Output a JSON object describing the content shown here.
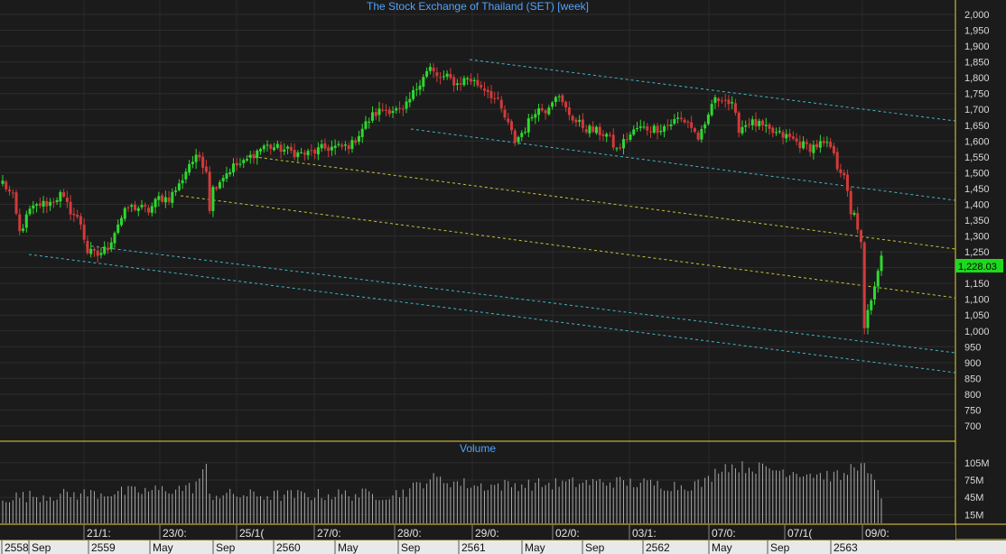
{
  "chart_data": {
    "type": "candlestick",
    "title": "The Stock Exchange of Thailand (SET) [week]",
    "volume_title": "Volume",
    "price_axis": {
      "ticks": [
        "2,000",
        "1,950",
        "1,900",
        "1,850",
        "1,800",
        "1,750",
        "1,700",
        "1,650",
        "1,600",
        "1,550",
        "1,500",
        "1,450",
        "1,400",
        "1,350",
        "1,300",
        "1,250",
        "1,200",
        "1,150",
        "1,100",
        "1,050",
        "1,000",
        "950",
        "900",
        "850",
        "800",
        "750",
        "700"
      ],
      "range": [
        670,
        2020
      ],
      "grid": true
    },
    "volume_axis": {
      "ticks": [
        "105M",
        "75M",
        "45M",
        "15M"
      ],
      "range": [
        0,
        125
      ]
    },
    "last_price": "1,228.03",
    "top_date_labels": [
      "21/1:",
      "23/0:",
      "25/1(",
      "27/0:",
      "28/0:",
      "29/0:",
      "02/0:",
      "03/1:",
      "07/0:",
      "07/1(",
      "09/0:"
    ],
    "bottom_period_labels": [
      "2558",
      "Sep",
      "2559",
      "May",
      "Sep",
      "2560",
      "May",
      "Sep",
      "2561",
      "May",
      "Sep",
      "2562",
      "May",
      "Sep",
      "2563"
    ],
    "price_anchors": [
      [
        0,
        1470
      ],
      [
        3,
        1420
      ],
      [
        5,
        1310
      ],
      [
        8,
        1380
      ],
      [
        11,
        1400
      ],
      [
        14,
        1405
      ],
      [
        17,
        1430
      ],
      [
        20,
        1380
      ],
      [
        23,
        1340
      ],
      [
        25,
        1250
      ],
      [
        28,
        1240
      ],
      [
        31,
        1265
      ],
      [
        34,
        1340
      ],
      [
        37,
        1390
      ],
      [
        40,
        1390
      ],
      [
        43,
        1380
      ],
      [
        46,
        1420
      ],
      [
        49,
        1420
      ],
      [
        52,
        1460
      ],
      [
        55,
        1530
      ],
      [
        58,
        1550
      ],
      [
        60,
        1510
      ],
      [
        61,
        1390
      ],
      [
        62,
        1450
      ],
      [
        65,
        1490
      ],
      [
        68,
        1520
      ],
      [
        71,
        1530
      ],
      [
        74,
        1560
      ],
      [
        77,
        1585
      ],
      [
        80,
        1580
      ],
      [
        84,
        1570
      ],
      [
        87,
        1560
      ],
      [
        90,
        1560
      ],
      [
        94,
        1575
      ],
      [
        97,
        1580
      ],
      [
        100,
        1580
      ],
      [
        103,
        1590
      ],
      [
        106,
        1640
      ],
      [
        109,
        1680
      ],
      [
        112,
        1700
      ],
      [
        115,
        1700
      ],
      [
        118,
        1690
      ],
      [
        121,
        1750
      ],
      [
        124,
        1810
      ],
      [
        126,
        1830
      ],
      [
        128,
        1800
      ],
      [
        131,
        1800
      ],
      [
        134,
        1780
      ],
      [
        137,
        1800
      ],
      [
        140,
        1780
      ],
      [
        143,
        1760
      ],
      [
        146,
        1720
      ],
      [
        149,
        1650
      ],
      [
        151,
        1600
      ],
      [
        154,
        1640
      ],
      [
        157,
        1700
      ],
      [
        160,
        1700
      ],
      [
        163,
        1750
      ],
      [
        166,
        1700
      ],
      [
        169,
        1660
      ],
      [
        172,
        1640
      ],
      [
        175,
        1630
      ],
      [
        178,
        1620
      ],
      [
        181,
        1570
      ],
      [
        184,
        1610
      ],
      [
        187,
        1640
      ],
      [
        190,
        1640
      ],
      [
        193,
        1640
      ],
      [
        196,
        1650
      ],
      [
        199,
        1670
      ],
      [
        202,
        1660
      ],
      [
        205,
        1610
      ],
      [
        207,
        1640
      ],
      [
        209,
        1720
      ],
      [
        212,
        1740
      ],
      [
        215,
        1710
      ],
      [
        217,
        1640
      ],
      [
        220,
        1660
      ],
      [
        223,
        1650
      ],
      [
        226,
        1630
      ],
      [
        229,
        1620
      ],
      [
        232,
        1610
      ],
      [
        235,
        1590
      ],
      [
        238,
        1580
      ],
      [
        241,
        1590
      ],
      [
        244,
        1580
      ],
      [
        246,
        1520
      ],
      [
        248,
        1500
      ],
      [
        250,
        1360
      ],
      [
        251,
        1380
      ],
      [
        253,
        1270
      ],
      [
        254,
        1000
      ],
      [
        255,
        1060
      ],
      [
        256,
        1090
      ],
      [
        257,
        1150
      ],
      [
        258,
        1180
      ],
      [
        259,
        1228
      ]
    ],
    "volume_anchors": [
      [
        0,
        45
      ],
      [
        20,
        50
      ],
      [
        40,
        55
      ],
      [
        56,
        62
      ],
      [
        60,
        95
      ],
      [
        61,
        50
      ],
      [
        80,
        48
      ],
      [
        100,
        50
      ],
      [
        115,
        50
      ],
      [
        120,
        58
      ],
      [
        126,
        78
      ],
      [
        140,
        65
      ],
      [
        160,
        68
      ],
      [
        180,
        72
      ],
      [
        200,
        65
      ],
      [
        207,
        70
      ],
      [
        212,
        100
      ],
      [
        225,
        95
      ],
      [
        240,
        85
      ],
      [
        248,
        80
      ],
      [
        251,
        105
      ],
      [
        254,
        95
      ],
      [
        259,
        50
      ]
    ],
    "weeks": 260
  }
}
